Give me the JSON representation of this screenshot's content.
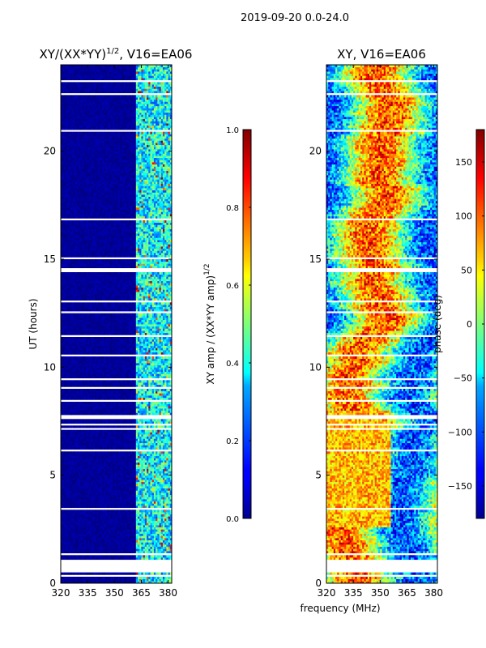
{
  "figure_title": "2019-09-20 0.0-24.0",
  "colors": {
    "background": "#ffffff",
    "jet_low": "#00008f",
    "jet_high": "#800000",
    "gap": "#ffffff"
  },
  "chart_data": [
    {
      "type": "heatmap",
      "title": "XY/(XX*YY)^{1/2}, V16=EA06",
      "title_base": "XY/(XX*YY)",
      "title_sup": "1/2",
      "title_tail": ", V16=EA06",
      "xlabel": "",
      "ylabel": "UT (hours)",
      "xlim": [
        320,
        382
      ],
      "ylim": [
        0,
        24
      ],
      "xticks": [
        "320",
        "335",
        "350",
        "365",
        "380"
      ],
      "xtick_values": [
        320,
        335,
        350,
        365,
        380
      ],
      "yticks": [
        "0",
        "5",
        "10",
        "15",
        "20"
      ],
      "ytick_values": [
        0,
        5,
        10,
        15,
        20
      ],
      "colorbar": {
        "label": "XY amp / (XX*YY amp)^{1/2}",
        "label_base": "XY amp / (XX*YY amp)",
        "label_sup": "1/2",
        "range": [
          0,
          1
        ],
        "ticks": [
          "0.0",
          "0.2",
          "0.4",
          "0.6",
          "0.8",
          "1.0"
        ],
        "tick_values": [
          0,
          0.2,
          0.4,
          0.6,
          0.8,
          1.0
        ]
      },
      "pattern": "near-zero amplitude (dark blue) for 320-360 MHz; amplitudes ~0.2-0.6 in channels 360-382 MHz with occasional peaks up to ~1.0"
    },
    {
      "type": "heatmap",
      "title": "XY, V16=EA06",
      "xlabel": "frequency (MHz)",
      "ylabel": "",
      "xlim": [
        320,
        382
      ],
      "ylim": [
        0,
        24
      ],
      "xticks": [
        "320",
        "335",
        "350",
        "365",
        "380"
      ],
      "xtick_values": [
        320,
        335,
        350,
        365,
        380
      ],
      "yticks": [
        "0",
        "5",
        "10",
        "15",
        "20"
      ],
      "ytick_values": [
        0,
        5,
        10,
        15,
        20
      ],
      "colorbar": {
        "label": "phase (deg)",
        "range": [
          -180,
          180
        ],
        "ticks": [
          "−150",
          "−100",
          "−50",
          "0",
          "50",
          "100",
          "150"
        ],
        "tick_values": [
          -150,
          -100,
          -50,
          0,
          50,
          100,
          150
        ]
      },
      "pattern": "noisy phase; warm (+50 to +150 deg) region 320-355 MHz between 2.5 and 8 UT, mixed phases elsewhere"
    }
  ]
}
